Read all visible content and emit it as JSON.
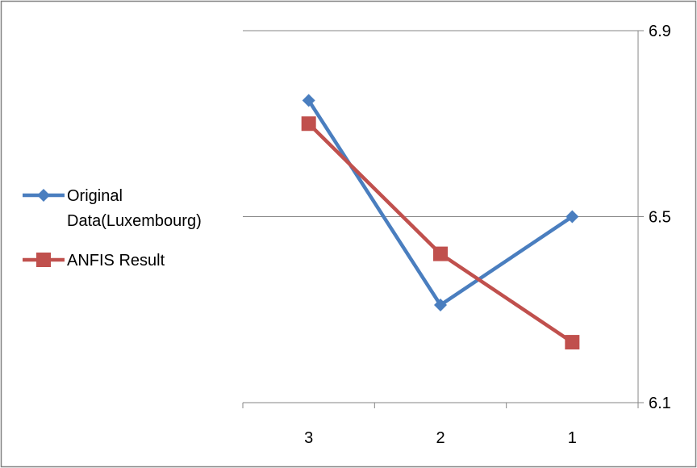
{
  "chart_data": {
    "type": "line",
    "title": "",
    "xlabel": "",
    "ylabel": "",
    "categories": [
      "3",
      "2",
      "1"
    ],
    "ylim": [
      6.1,
      6.9
    ],
    "y_ticks": [
      "6.1",
      "6.5",
      "6.9"
    ],
    "y_axis_side": "right",
    "grid": "horizontal",
    "legend_position": "left",
    "series": [
      {
        "name": "Original Data(Luxembourg)",
        "legend_lines": [
          "Original",
          "Data(Luxembourg)"
        ],
        "values": [
          6.75,
          6.31,
          6.5
        ],
        "color": "#4a7ebf",
        "marker": "diamond"
      },
      {
        "name": "ANFIS Result",
        "legend_lines": [
          "ANFIS Result"
        ],
        "values": [
          6.7,
          6.42,
          6.23
        ],
        "color": "#c0504d",
        "marker": "square"
      }
    ]
  }
}
